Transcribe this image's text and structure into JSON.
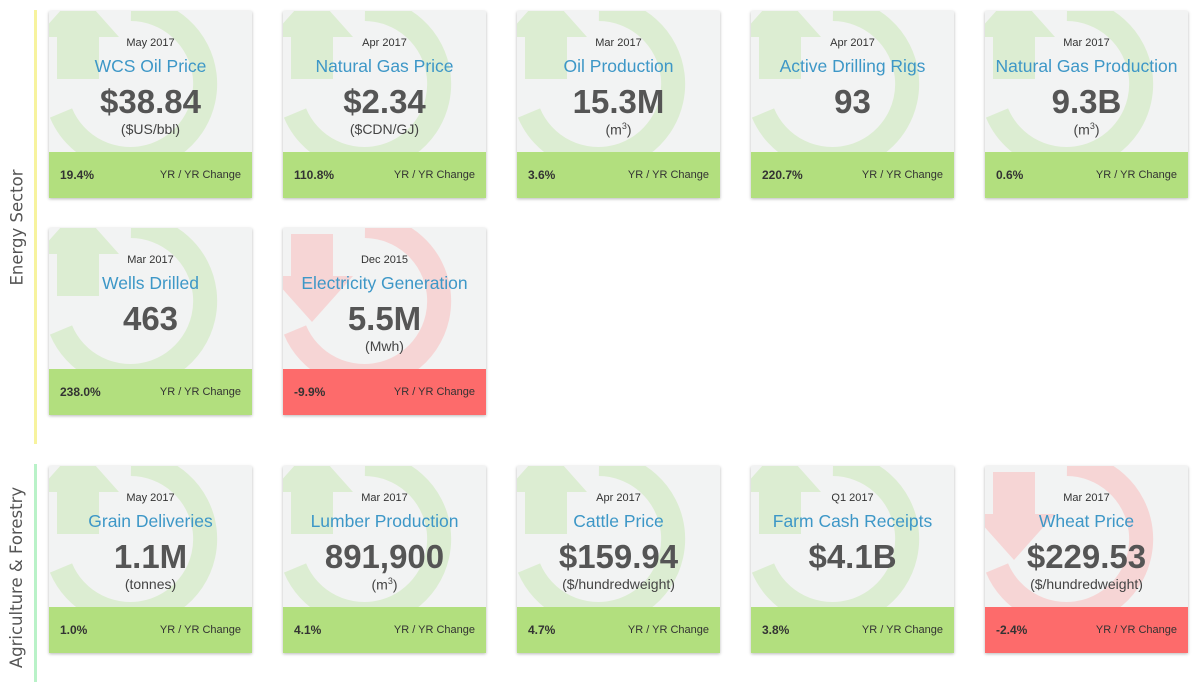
{
  "colors": {
    "title": "#3d97c7",
    "value": "#555555",
    "up_footer": "#b2df7e",
    "down_footer": "#fd6b6b",
    "card_background": "#f2f3f3",
    "up_watermark": "#dcedd2",
    "down_watermark": "#f6d5d5",
    "energy_accent": "#f7f39e",
    "agriculture_accent": "#b9f2c8"
  },
  "sections": {
    "energy": {
      "label": "Energy Sector",
      "cards": [
        {
          "date": "May 2017",
          "title": "WCS Oil Price",
          "value": "$38.84",
          "unit": "($US/bbl)",
          "change": "19.4%",
          "change_label": "YR / YR Change",
          "trend": "up",
          "icon": "arrow-up-circle-icon"
        },
        {
          "date": "Apr 2017",
          "title": "Natural Gas Price",
          "value": "$2.34",
          "unit": "($CDN/GJ)",
          "change": "110.8%",
          "change_label": "YR / YR Change",
          "trend": "up",
          "icon": "arrow-up-circle-icon"
        },
        {
          "date": "Mar 2017",
          "title": "Oil Production",
          "value": "15.3M",
          "unit": "(m<sup>3</sup>)",
          "change": "3.6%",
          "change_label": "YR / YR Change",
          "trend": "up",
          "icon": "arrow-up-circle-icon"
        },
        {
          "date": "Apr 2017",
          "title": "Active Drilling Rigs",
          "value": "93",
          "unit": "",
          "change": "220.7%",
          "change_label": "YR / YR Change",
          "trend": "up",
          "icon": "arrow-up-circle-icon"
        },
        {
          "date": "Mar 2017",
          "title": "Natural Gas Production",
          "value": "9.3B",
          "unit": "(m<sup>3</sup>)",
          "change": "0.6%",
          "change_label": "YR / YR Change",
          "trend": "up",
          "icon": "arrow-up-circle-icon"
        },
        {
          "date": "Mar 2017",
          "title": "Wells Drilled",
          "value": "463",
          "unit": "",
          "change": "238.0%",
          "change_label": "YR / YR Change",
          "trend": "up",
          "icon": "arrow-up-circle-icon"
        },
        {
          "date": "Dec 2015",
          "title": "Electricity Generation",
          "value": "5.5M",
          "unit": "(Mwh)",
          "change": "-9.9%",
          "change_label": "YR / YR Change",
          "trend": "down",
          "icon": "arrow-down-circle-icon"
        }
      ]
    },
    "agriculture": {
      "label": "Agriculture & Forestry",
      "cards": [
        {
          "date": "May 2017",
          "title": "Grain Deliveries",
          "value": "1.1M",
          "unit": "(tonnes)",
          "change": "1.0%",
          "change_label": "YR / YR Change",
          "trend": "up",
          "icon": "arrow-up-circle-icon"
        },
        {
          "date": "Mar 2017",
          "title": "Lumber Production",
          "value": "891,900",
          "unit": "(m<sup>3</sup>)",
          "change": "4.1%",
          "change_label": "YR / YR Change",
          "trend": "up",
          "icon": "arrow-up-circle-icon"
        },
        {
          "date": "Apr 2017",
          "title": "Cattle Price",
          "value": "$159.94",
          "unit": "($/hundredweight)",
          "change": "4.7%",
          "change_label": "YR / YR Change",
          "trend": "up",
          "icon": "arrow-up-circle-icon"
        },
        {
          "date": "Q1 2017",
          "title": "Farm Cash Receipts",
          "value": "$4.1B",
          "unit": "",
          "change": "3.8%",
          "change_label": "YR / YR Change",
          "trend": "up",
          "icon": "arrow-up-circle-icon"
        },
        {
          "date": "Mar 2017",
          "title": "Wheat Price",
          "value": "$229.53",
          "unit": "($/hundredweight)",
          "change": "-2.4%",
          "change_label": "YR / YR Change",
          "trend": "down",
          "icon": "arrow-down-circle-icon"
        }
      ]
    }
  }
}
